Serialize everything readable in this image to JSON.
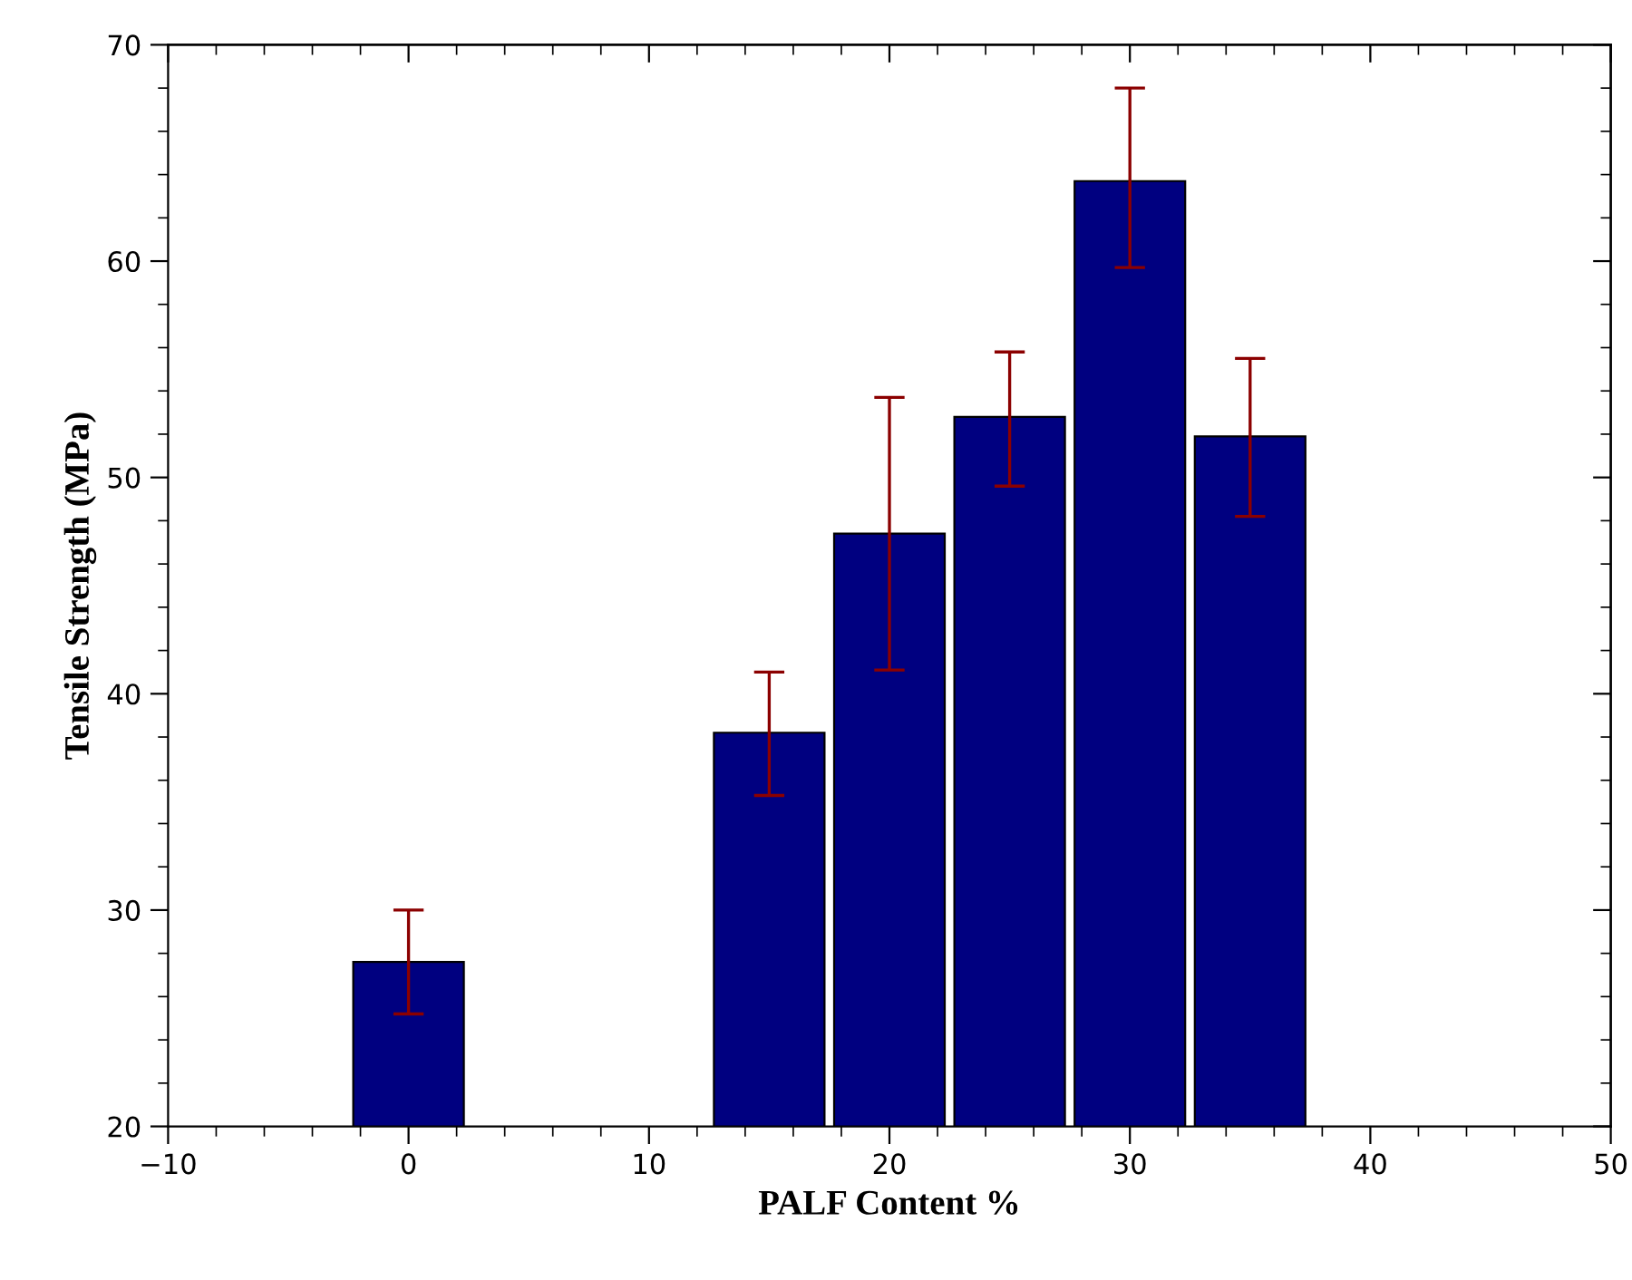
{
  "chart_data": {
    "type": "bar",
    "xlabel": "PALF Content %",
    "ylabel": "Tensile Strength (MPa)",
    "x": [
      0,
      15,
      20,
      25,
      30,
      35
    ],
    "series": [
      {
        "color": "#000080",
        "values": [
          27.6,
          38.2,
          47.4,
          52.8,
          63.7,
          51.9
        ],
        "errors": [
          [
            25.2,
            30.0
          ],
          [
            35.3,
            41.0
          ],
          [
            41.1,
            53.7
          ],
          [
            49.6,
            55.8
          ],
          [
            59.7,
            68.0
          ],
          [
            48.2,
            55.5
          ]
        ]
      }
    ],
    "xlim": [
      -10,
      50
    ],
    "xticks": [
      {
        "value": -10,
        "label": "−10"
      },
      0,
      10,
      20,
      30,
      40,
      50
    ],
    "ylim": [
      20,
      70
    ],
    "yticks": [
      20,
      30,
      40,
      50,
      60,
      70
    ],
    "grid": false,
    "legend": false
  }
}
